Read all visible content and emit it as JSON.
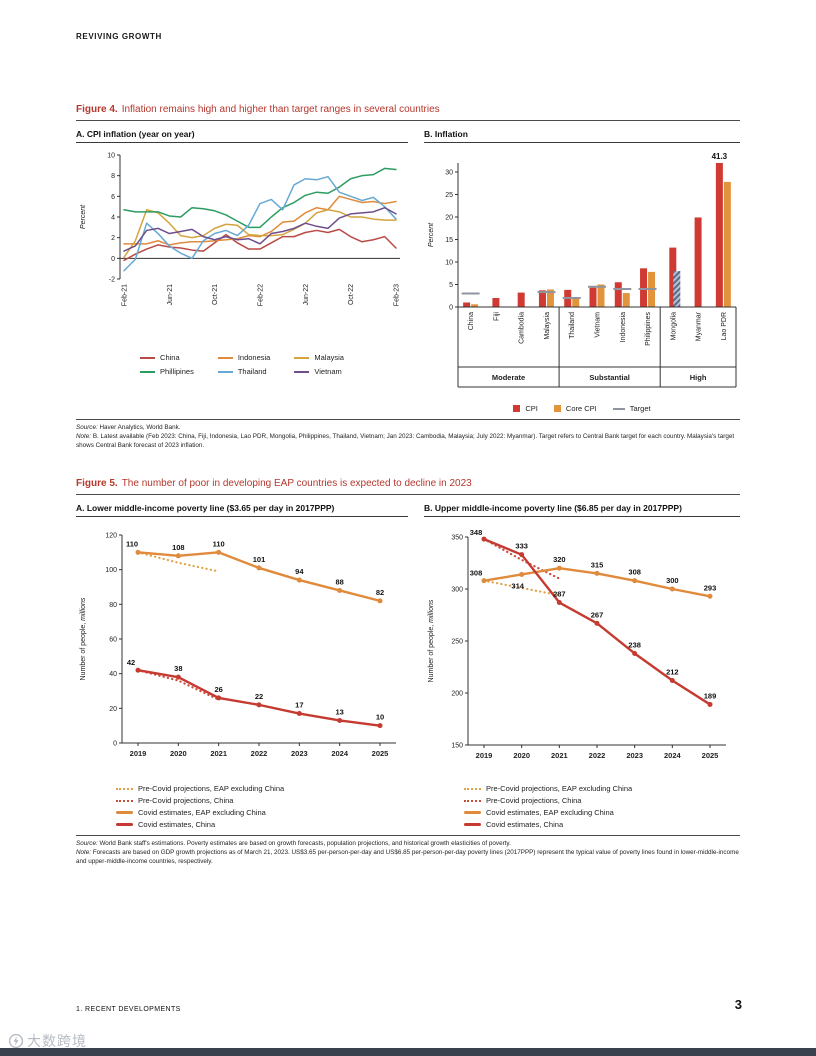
{
  "page": {
    "header": "REVIVING GROWTH",
    "footer_left": "1.  RECENT DEVELOPMENTS",
    "footer_page": "3",
    "watermark": "大数跨境"
  },
  "figures": {
    "fig4": {
      "label": "Figure 4.",
      "title": "Inflation remains high and higher than target ranges in several countries",
      "source_label": "Source:",
      "source": "Haver Analytics, World Bank.",
      "note_label": "Note:",
      "note": "B. Latest available (Feb 2023: China, Fiji, Indonesia, Lao PDR, Mongolia, Philippines, Thailand, Vietnam; Jan 2023: Cambodia, Malaysia; July 2022: Myanmar). Target refers to Central Bank target for each country. Malaysia's target shows Central Bank forecast of 2023 inflation."
    },
    "fig5": {
      "label": "Figure 5.",
      "title": "The number of poor in developing EAP countries is expected to decline in 2023",
      "source_label": "Source:",
      "source": "World Bank staff's estimations. Poverty estimates are based on growth forecasts, population projections, and historical growth elasticities of poverty.",
      "note_label": "Note:",
      "note": "Forecasts are based on GDP growth projections as of March 21, 2023. US$3.65 per-person-per-day and US$6.85 per-person-per-day poverty lines (2017PPP) represent the typical value of poverty lines found in lower-middle-income and upper-middle-income countries, respectively."
    }
  },
  "chart_data": [
    {
      "id": "fig4a",
      "type": "line",
      "title": "A. CPI inflation (year on year)",
      "ylabel": "Percent",
      "ylabel_italic": true,
      "ylim": [
        -2,
        10
      ],
      "yticks": [
        -2,
        0,
        2,
        4,
        6,
        8,
        10
      ],
      "zero_line": true,
      "n_points": 25,
      "x_pad": 4,
      "x_tick_labels": [
        "Feb-21",
        "Jun-21",
        "Oct-21",
        "Feb-22",
        "Jun-22",
        "Oct-22",
        "Feb-23"
      ],
      "x_tick_positions": [
        0,
        4,
        8,
        12,
        16,
        20,
        24
      ],
      "series": [
        {
          "name": "China",
          "color": "#b94a45",
          "values": [
            -0.2,
            0.4,
            0.9,
            1.3,
            1.1,
            1.0,
            0.8,
            0.7,
            1.5,
            2.3,
            1.5,
            0.9,
            0.9,
            1.5,
            2.1,
            2.1,
            2.5,
            2.7,
            2.5,
            2.8,
            2.1,
            1.6,
            1.8,
            2.1,
            1.0
          ]
        },
        {
          "name": "Indonesia",
          "color": "#e08a3c",
          "values": [
            1.4,
            1.4,
            1.4,
            1.7,
            1.3,
            1.5,
            1.6,
            1.6,
            1.7,
            1.8,
            1.9,
            2.2,
            2.1,
            2.6,
            3.5,
            3.6,
            4.4,
            4.9,
            4.7,
            6.0,
            5.7,
            5.4,
            5.5,
            5.3,
            5.5
          ]
        },
        {
          "name": "Malaysia",
          "color": "#d4a43e",
          "values": [
            0.1,
            1.7,
            4.7,
            4.4,
            3.4,
            2.2,
            2.0,
            2.2,
            2.9,
            3.3,
            3.2,
            2.3,
            2.2,
            2.2,
            2.3,
            2.8,
            3.4,
            4.4,
            4.7,
            4.5,
            4.0,
            4.0,
            3.8,
            3.7,
            3.7
          ]
        },
        {
          "name": "Phillipines",
          "color": "#2c9c62",
          "values": [
            4.7,
            4.5,
            4.5,
            4.5,
            4.1,
            4.0,
            4.9,
            4.8,
            4.6,
            4.2,
            3.6,
            3.0,
            3.0,
            4.0,
            4.9,
            5.4,
            6.1,
            6.4,
            6.3,
            6.9,
            7.7,
            8.0,
            8.1,
            8.7,
            8.6
          ]
        },
        {
          "name": "Thailand",
          "color": "#67a9d4",
          "values": [
            -1.2,
            -0.1,
            3.4,
            2.4,
            1.2,
            0.5,
            0.0,
            1.7,
            2.4,
            2.7,
            2.2,
            3.2,
            5.3,
            5.7,
            4.7,
            7.1,
            7.7,
            7.6,
            7.9,
            6.4,
            6.0,
            5.6,
            5.9,
            5.0,
            3.8
          ]
        },
        {
          "name": "Vietnam",
          "color": "#6d4f8c",
          "values": [
            0.7,
            1.2,
            2.7,
            2.9,
            2.4,
            2.6,
            2.8,
            2.1,
            1.8,
            2.1,
            1.8,
            1.9,
            1.4,
            2.4,
            2.6,
            2.9,
            3.4,
            3.1,
            2.9,
            3.9,
            4.3,
            4.4,
            4.5,
            4.9,
            4.3
          ]
        }
      ],
      "legend": [
        {
          "label": "China",
          "color": "#b94a45",
          "style": "line"
        },
        {
          "label": "Indonesia",
          "color": "#e08a3c",
          "style": "line"
        },
        {
          "label": "Malaysia",
          "color": "#d4a43e",
          "style": "line"
        },
        {
          "label": "Phillipines",
          "color": "#2c9c62",
          "style": "line"
        },
        {
          "label": "Thailand",
          "color": "#67a9d4",
          "style": "line"
        },
        {
          "label": "Vietnam",
          "color": "#6d4f8c",
          "style": "line"
        }
      ]
    },
    {
      "id": "fig4b",
      "type": "bar",
      "title": "B. Inflation",
      "ylabel": "Percent",
      "ylabel_italic": true,
      "ylim": [
        0,
        32
      ],
      "yticks": [
        0,
        5,
        10,
        15,
        20,
        25,
        30
      ],
      "categories": [
        "China",
        "Fiji",
        "Cambodia",
        "Malaysia",
        "Thailand",
        "Vietnam",
        "Indonesia",
        "Philippines",
        "Mongolia",
        "Myanmar",
        "Lao PDR"
      ],
      "series": [
        {
          "name": "CPI",
          "color": "#cf3a32",
          "values": [
            1.0,
            2.0,
            3.2,
            3.7,
            3.8,
            4.3,
            5.5,
            8.6,
            13.2,
            19.9,
            41.3
          ]
        },
        {
          "name": "Core CPI",
          "color": "#e2943c",
          "values": [
            0.6,
            null,
            null,
            3.9,
            1.9,
            5.0,
            3.1,
            7.8,
            null,
            null,
            27.8
          ]
        }
      ],
      "targets": [
        3.0,
        null,
        null,
        3.3,
        2.0,
        4.5,
        4.0,
        4.0,
        null,
        null,
        null
      ],
      "target_color": "#8f959e",
      "target_band": {
        "index": 8,
        "from": 0,
        "to": 8.0
      },
      "annotation": {
        "category": "Lao PDR",
        "text": "41.3"
      },
      "groups": [
        {
          "label": "Moderate",
          "from": 0,
          "to": 3
        },
        {
          "label": "Substantial",
          "from": 4,
          "to": 7
        },
        {
          "label": "High",
          "from": 8,
          "to": 10
        }
      ],
      "legend": [
        {
          "label": "CPI",
          "color": "#cf3a32",
          "style": "square"
        },
        {
          "label": "Core CPI",
          "color": "#e2943c",
          "style": "square"
        },
        {
          "label": "Target",
          "color": "#8f959e",
          "style": "dash"
        }
      ]
    },
    {
      "id": "fig5a",
      "type": "line",
      "title": "A. Lower middle-income poverty line ($3.65 per day in 2017PPP)",
      "ylabel": "Number of people, ",
      "ylabel_em": "millions",
      "ylim": [
        0,
        120
      ],
      "yticks": [
        0,
        20,
        40,
        60,
        80,
        100,
        120
      ],
      "baseline": true,
      "x": [
        2019,
        2020,
        2021,
        2022,
        2023,
        2024,
        2025
      ],
      "x_pad": 16,
      "series": [
        {
          "name": "Pre-Covid projections, EAP excluding China",
          "color": "#e3a044",
          "dash": true,
          "values": [
            110,
            104,
            99,
            null,
            null,
            null,
            null
          ]
        },
        {
          "name": "Pre-Covid projections, China",
          "color": "#c94c3a",
          "dash": true,
          "values": [
            42,
            36,
            25,
            null,
            null,
            null,
            null
          ]
        },
        {
          "name": "Covid estimates, EAP excluding China",
          "color": "#e08a3c",
          "markers": true,
          "labels": true,
          "label_offsets": {
            "0": [
              -6,
              -6
            ]
          },
          "values": [
            110,
            108,
            110,
            101,
            94,
            88,
            82
          ]
        },
        {
          "name": "Covid estimates, China",
          "color": "#c53a31",
          "markers": true,
          "labels": true,
          "label_offsets": {
            "0": [
              -7,
              -5
            ]
          },
          "values": [
            42,
            38,
            26,
            22,
            17,
            13,
            10
          ]
        }
      ],
      "legend": [
        {
          "label": "Pre-Covid projections, EAP excluding China",
          "color": "#e3a044",
          "style": "dotted"
        },
        {
          "label": "Pre-Covid projections, China",
          "color": "#c94c3a",
          "style": "dotted"
        },
        {
          "label": "Covid estimates, EAP excluding China",
          "color": "#e08a3c",
          "style": "thick"
        },
        {
          "label": "Covid estimates, China",
          "color": "#c53a31",
          "style": "thick"
        }
      ]
    },
    {
      "id": "fig5b",
      "type": "line",
      "title": "B. Upper middle-income poverty line ($6.85 per day in 2017PPP)",
      "ylabel": "Number of people, ",
      "ylabel_em": "millions",
      "ylim": [
        150,
        350
      ],
      "yticks": [
        150,
        200,
        250,
        300,
        350
      ],
      "baseline": true,
      "x": [
        2019,
        2020,
        2021,
        2022,
        2023,
        2024,
        2025
      ],
      "x_pad": 16,
      "series": [
        {
          "name": "Pre-Covid projections, EAP excluding China",
          "color": "#e3a044",
          "dash": true,
          "values": [
            308,
            301,
            294,
            null,
            null,
            null,
            null
          ]
        },
        {
          "name": "Pre-Covid projections, China",
          "color": "#c94c3a",
          "dash": true,
          "values": [
            348,
            328,
            310,
            null,
            null,
            null,
            null
          ]
        },
        {
          "name": "Covid estimates, EAP excluding China",
          "color": "#e08a3c",
          "markers": true,
          "labels": true,
          "label_offsets": {
            "0": [
              -8,
              -5
            ],
            "1": [
              -4,
              14
            ]
          },
          "values": [
            308,
            314,
            320,
            315,
            308,
            300,
            293
          ]
        },
        {
          "name": "Covid estimates, China",
          "color": "#c53a31",
          "markers": true,
          "labels": true,
          "label_offsets": {
            "0": [
              -8,
              -4
            ]
          },
          "values": [
            348,
            333,
            287,
            267,
            238,
            212,
            189
          ]
        }
      ],
      "legend": [
        {
          "label": "Pre-Covid projections, EAP excluding China",
          "color": "#e3a044",
          "style": "dotted"
        },
        {
          "label": "Pre-Covid projections, China",
          "color": "#c94c3a",
          "style": "dotted"
        },
        {
          "label": "Covid estimates, EAP excluding China",
          "color": "#e08a3c",
          "style": "thick"
        },
        {
          "label": "Covid estimates, China",
          "color": "#c53a31",
          "style": "thick"
        }
      ]
    }
  ]
}
